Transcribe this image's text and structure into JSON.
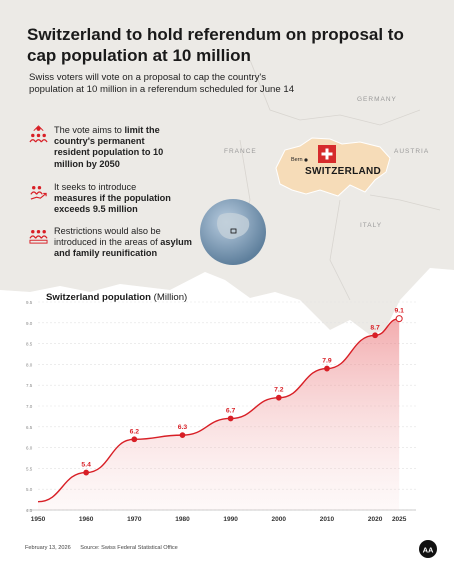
{
  "header": {
    "title": "Switzerland to hold referendum on proposal to cap population at 10 million",
    "subtitle": "Swiss voters will vote on a proposal to cap the country's population at 10 million in a referendum scheduled for June 14"
  },
  "facts": [
    {
      "icon": "people-target-icon",
      "pre": "The vote aims to ",
      "bold": "limit the country's permanent resident population to 10 million by 2050",
      "post": ""
    },
    {
      "icon": "people-growth-icon",
      "pre": "It seeks to introduce ",
      "bold": "measures if the population exceeds 9.5 million",
      "post": ""
    },
    {
      "icon": "people-restriction-icon",
      "pre": "Restrictions would also be introduced in the areas of ",
      "bold": "asylum and family reunification",
      "post": ""
    }
  ],
  "map": {
    "countries": [
      "GERMANY",
      "FRANCE",
      "AUSTRIA",
      "ITALY"
    ],
    "highlight": "SWITZERLAND",
    "capital": "Bern",
    "highlight_color": "#f6dcb8",
    "flag_color": "#d62b2b"
  },
  "chart_data": {
    "type": "area",
    "title": "Switzerland population",
    "unit": "(Million)",
    "x": [
      1950,
      1960,
      1970,
      1980,
      1990,
      2000,
      2010,
      2020,
      2025
    ],
    "values": [
      4.7,
      5.4,
      6.2,
      6.3,
      6.7,
      7.2,
      7.9,
      8.7,
      9.1
    ],
    "value_labels": [
      "",
      "5.4",
      "6.2",
      "6.3",
      "6.7",
      "7.2",
      "7.9",
      "8.7",
      "9.1"
    ],
    "ylim": [
      4.5,
      9.5
    ],
    "yticks": [
      "4.5",
      "5.0",
      "5.5",
      "6.0",
      "6.5",
      "7.0",
      "7.5",
      "8.0",
      "8.5",
      "9.0",
      "9.5"
    ],
    "xticks": [
      "1950",
      "1960",
      "1970",
      "1980",
      "1990",
      "2000",
      "2010",
      "2020",
      "2025"
    ],
    "line_color": "#d81f26",
    "grid": true
  },
  "footer": {
    "date": "February 13, 2026",
    "source": "Source: Swiss Federal Statistical Office",
    "logo": "AA"
  }
}
